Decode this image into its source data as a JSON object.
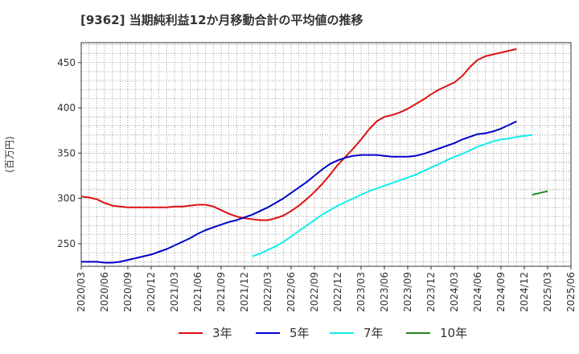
{
  "chart_data": {
    "type": "line",
    "title": "[9362]  当期純利益12か月移動合計の平均値の推移",
    "ylabel": "(百万円)",
    "xlabel": "",
    "ylim": [
      225,
      472
    ],
    "yticks": [
      250,
      300,
      350,
      400,
      450
    ],
    "x_tick_labels": [
      "2020/03",
      "2020/06",
      "2020/09",
      "2020/12",
      "2021/03",
      "2021/06",
      "2021/09",
      "2021/12",
      "2022/03",
      "2022/06",
      "2022/09",
      "2022/12",
      "2023/03",
      "2023/06",
      "2023/09",
      "2023/12",
      "2024/03",
      "2024/06",
      "2024/09",
      "2024/12",
      "2025/03",
      "2025/06"
    ],
    "x_start": "2020/03",
    "x_end": "2025/06",
    "grid": true,
    "legend_position": "bottom",
    "series": [
      {
        "name": "3年",
        "color": "#dd1111",
        "start": "2020/03",
        "values": [
          302,
          301,
          299,
          295,
          292,
          291,
          290,
          290,
          290,
          290,
          290,
          290,
          291,
          291,
          292,
          293,
          293,
          291,
          287,
          283,
          280,
          278,
          277,
          276,
          276,
          278,
          281,
          286,
          292,
          299,
          307,
          316,
          326,
          337,
          346,
          355,
          365,
          376,
          385,
          390,
          392,
          395,
          399,
          404,
          409,
          415,
          420,
          424,
          428,
          435,
          445,
          453,
          457,
          459,
          461,
          463,
          465
        ]
      },
      {
        "name": "5年",
        "color": "#0000cc",
        "start": "2020/03",
        "values": [
          230,
          230,
          230,
          229,
          229,
          230,
          232,
          234,
          236,
          238,
          241,
          244,
          248,
          252,
          256,
          261,
          265,
          268,
          271,
          274,
          276,
          279,
          282,
          286,
          290,
          295,
          300,
          306,
          312,
          318,
          325,
          332,
          338,
          342,
          345,
          347,
          348,
          348,
          348,
          347,
          346,
          346,
          346,
          347,
          349,
          352,
          355,
          358,
          361,
          365,
          368,
          371,
          372,
          374,
          377,
          381,
          385
        ]
      },
      {
        "name": "7年",
        "color": "#11eeee",
        "start": "2022/01",
        "values": [
          236,
          239,
          243,
          247,
          252,
          258,
          264,
          270,
          276,
          282,
          287,
          292,
          296,
          300,
          304,
          308,
          311,
          314,
          317,
          320,
          323,
          326,
          330,
          334,
          338,
          342,
          346,
          349,
          353,
          357,
          360,
          363,
          365,
          366,
          368,
          369,
          370
        ]
      },
      {
        "name": "10年",
        "color": "#228822",
        "start": "2025/01",
        "values": [
          304,
          306,
          308
        ]
      }
    ]
  }
}
